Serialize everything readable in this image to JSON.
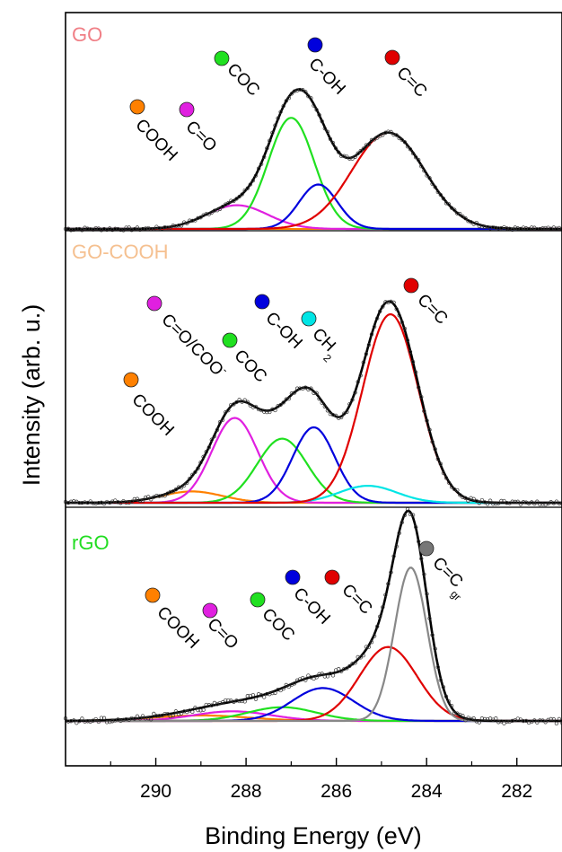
{
  "chart_data": {
    "type": "line",
    "xlabel": "Binding Energy (eV)",
    "ylabel": "Intensity (arb. u.)",
    "xlim": [
      292,
      281
    ],
    "x_reversed": true,
    "x_ticks": [
      290,
      288,
      286,
      284,
      282
    ],
    "grid": false,
    "legend": "none",
    "panels": [
      {
        "title": "GO",
        "title_color": "#f07f86",
        "components": [
          {
            "name": "COOH",
            "color": "#ff8000",
            "center": 289.3,
            "fwhm": 1.8,
            "amplitude": 0.0
          },
          {
            "name": "C=O",
            "color": "#e020e0",
            "center": 288.2,
            "fwhm": 1.6,
            "amplitude": 0.16
          },
          {
            "name": "COC",
            "color": "#20e020",
            "center": 287.0,
            "fwhm": 1.2,
            "amplitude": 0.75
          },
          {
            "name": "C-OH",
            "color": "#0000dd",
            "center": 286.4,
            "fwhm": 1.0,
            "amplitude": 0.3
          },
          {
            "name": "C=C",
            "color": "#e00000",
            "center": 284.85,
            "fwhm": 1.9,
            "amplitude": 0.65
          }
        ]
      },
      {
        "title": "GO-COOH",
        "title_color": "#f5c090",
        "components": [
          {
            "name": "COOH",
            "color": "#ff8000",
            "center": 289.2,
            "fwhm": 1.6,
            "amplitude": 0.06
          },
          {
            "name": "C=O/COO⁻",
            "color": "#e020e0",
            "center": 288.25,
            "fwhm": 1.2,
            "amplitude": 0.45
          },
          {
            "name": "COC",
            "color": "#20e020",
            "center": 287.2,
            "fwhm": 1.3,
            "amplitude": 0.34
          },
          {
            "name": "C-OH",
            "color": "#0000dd",
            "center": 286.5,
            "fwhm": 1.1,
            "amplitude": 0.4
          },
          {
            "name": "CH2",
            "color": "#00e5e5",
            "center": 285.3,
            "fwhm": 1.5,
            "amplitude": 0.09
          },
          {
            "name": "C=C",
            "color": "#e00000",
            "center": 284.8,
            "fwhm": 1.45,
            "amplitude": 1.0
          }
        ]
      },
      {
        "title": "rGO",
        "title_color": "#22dd22",
        "components": [
          {
            "name": "COOH",
            "color": "#ff8000",
            "center": 289.0,
            "fwhm": 2.5,
            "amplitude": 0.02
          },
          {
            "name": "C=O",
            "color": "#e020e0",
            "center": 288.3,
            "fwhm": 2.0,
            "amplitude": 0.035
          },
          {
            "name": "COC",
            "color": "#20e020",
            "center": 287.2,
            "fwhm": 1.8,
            "amplitude": 0.05
          },
          {
            "name": "C-OH",
            "color": "#0000dd",
            "center": 286.3,
            "fwhm": 1.6,
            "amplitude": 0.12
          },
          {
            "name": "C=C",
            "color": "#e00000",
            "center": 284.85,
            "fwhm": 1.5,
            "amplitude": 0.27
          },
          {
            "name": "C=Cgr",
            "color": "#888888",
            "center": 284.35,
            "fwhm": 0.85,
            "amplitude": 0.56
          }
        ]
      }
    ]
  },
  "panel_labels": [
    {
      "title": "GO",
      "labels": [
        {
          "text": "COOH",
          "color": "#ff8000"
        },
        {
          "text": "C=O",
          "color": "#e020e0"
        },
        {
          "text": "COC",
          "color": "#20e020"
        },
        {
          "text": "C-OH",
          "color": "#0000dd"
        },
        {
          "text": "C=C",
          "color": "#e00000"
        }
      ]
    },
    {
      "title": "GO-COOH",
      "labels": [
        {
          "text": "COOH",
          "color": "#ff8000"
        },
        {
          "text": "C=O/COO",
          "sup": "-",
          "color": "#e020e0"
        },
        {
          "text": "COC",
          "color": "#20e020"
        },
        {
          "text": "C-OH",
          "color": "#0000dd"
        },
        {
          "text": "CH",
          "sub": "2",
          "color": "#00e5e5"
        },
        {
          "text": "C=C",
          "color": "#e00000"
        }
      ]
    },
    {
      "title": "rGO",
      "labels": [
        {
          "text": "COOH",
          "color": "#ff8000"
        },
        {
          "text": "C=O",
          "color": "#e020e0"
        },
        {
          "text": "COC",
          "color": "#20e020"
        },
        {
          "text": "C-OH",
          "color": "#0000dd"
        },
        {
          "text": "C=C",
          "color": "#e00000"
        },
        {
          "text": "C=C",
          "sub": "gr",
          "color": "#777777"
        }
      ]
    }
  ]
}
